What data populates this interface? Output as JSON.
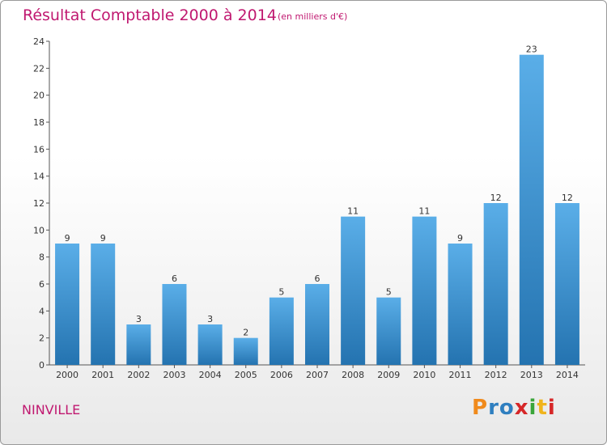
{
  "title": "Résultat Comptable 2000 à 2014",
  "subtitle": "(en milliers d'€)",
  "commune": "NINVILLE",
  "logo": {
    "letters": [
      "P",
      "r",
      "o",
      "x",
      "i",
      "t",
      "i"
    ],
    "colors": [
      "#f08a1c",
      "#2f7fc0",
      "#2f7fc0",
      "#d62728",
      "#3aa53a",
      "#f0b41c",
      "#d62728"
    ]
  },
  "colors": {
    "bar_top": "#5aaee8",
    "bar_bottom": "#2473b0",
    "text_accent": "#c01870"
  },
  "chart_data": {
    "type": "bar",
    "title": "Résultat Comptable 2000 à 2014",
    "subtitle": "(en milliers d'€)",
    "xlabel": "",
    "ylabel": "",
    "categories": [
      "2000",
      "2001",
      "2002",
      "2003",
      "2004",
      "2005",
      "2006",
      "2007",
      "2008",
      "2009",
      "2010",
      "2011",
      "2012",
      "2013",
      "2014"
    ],
    "values": [
      9,
      9,
      3,
      6,
      3,
      2,
      5,
      6,
      11,
      5,
      11,
      9,
      12,
      23,
      12
    ],
    "ylim": [
      0,
      24
    ],
    "yticks": [
      0,
      2,
      4,
      6,
      8,
      10,
      12,
      14,
      16,
      18,
      20,
      22,
      24
    ],
    "grid": false
  }
}
